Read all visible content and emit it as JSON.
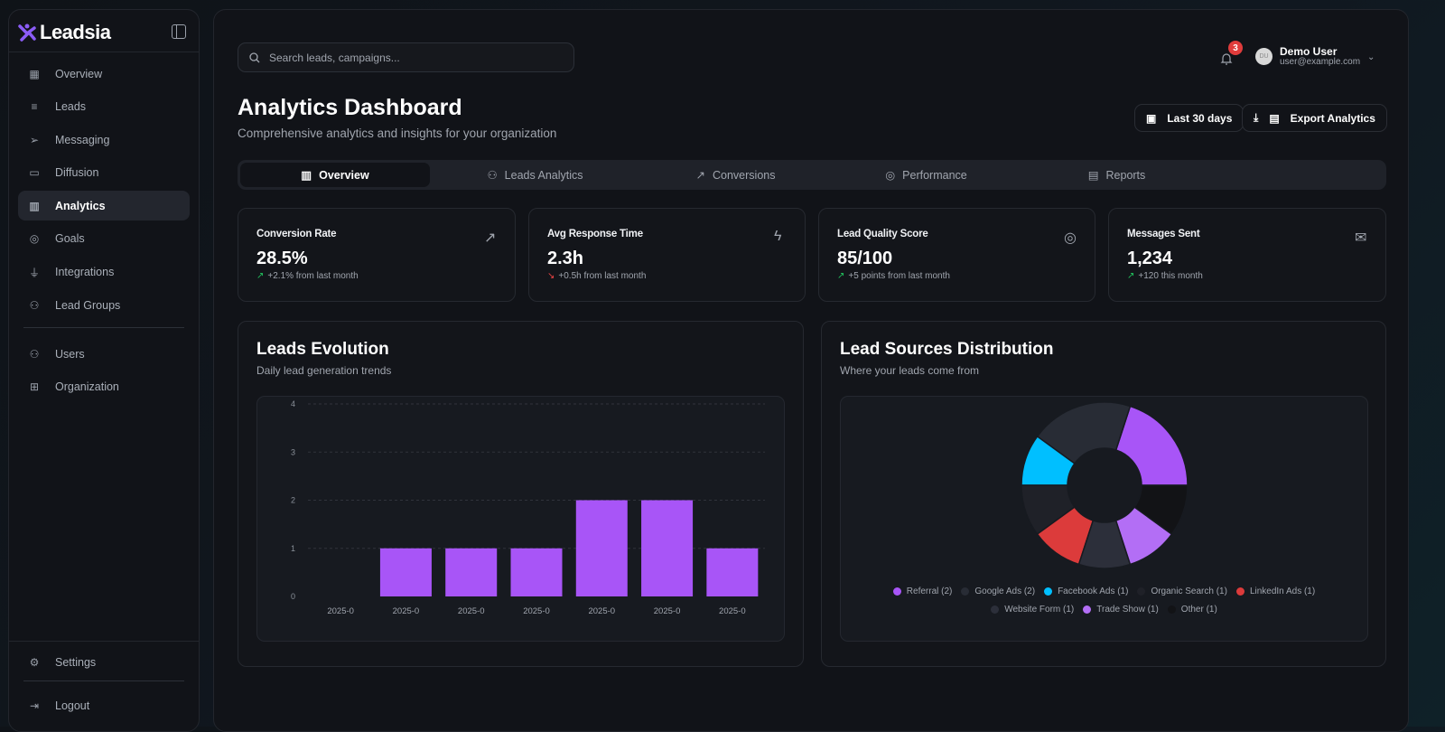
{
  "sidebar": {
    "brand": "Leadsia",
    "items": [
      {
        "label": "Overview",
        "icon": "grid-icon"
      },
      {
        "label": "Leads",
        "icon": "filter-icon"
      },
      {
        "label": "Messaging",
        "icon": "send-icon"
      },
      {
        "label": "Diffusion",
        "icon": "broadcast-icon"
      },
      {
        "label": "Analytics",
        "icon": "bar-chart-icon",
        "active": true
      },
      {
        "label": "Goals",
        "icon": "target-icon"
      },
      {
        "label": "Integrations",
        "icon": "plug-icon"
      },
      {
        "label": "Lead Groups",
        "icon": "users-icon"
      }
    ],
    "items2": [
      {
        "label": "Users",
        "icon": "users-icon"
      },
      {
        "label": "Organization",
        "icon": "briefcase-icon"
      }
    ],
    "settings": "Settings",
    "logout": "Logout"
  },
  "header": {
    "search_placeholder": "Search leads, campaigns...",
    "notifications": "3",
    "user_initials": "DU",
    "user_name": "Demo User",
    "user_email": "user@example.com"
  },
  "page": {
    "title": "Analytics Dashboard",
    "subtitle": "Comprehensive analytics and insights for your organization",
    "date_range": "Last 30 days",
    "export": "Export Analytics"
  },
  "tabs": [
    {
      "label": "Overview",
      "active": true
    },
    {
      "label": "Leads Analytics"
    },
    {
      "label": "Conversions"
    },
    {
      "label": "Performance"
    },
    {
      "label": "Reports"
    }
  ],
  "kpis": [
    {
      "title": "Conversion Rate",
      "value": "28.5%",
      "delta": "+2.1% from last month",
      "trend": "up",
      "icon": "trending-up-icon"
    },
    {
      "title": "Avg Response Time",
      "value": "2.3h",
      "delta": "+0.5h from last month",
      "trend": "down",
      "icon": "zap-icon"
    },
    {
      "title": "Lead Quality Score",
      "value": "85/100",
      "delta": "+5 points from last month",
      "trend": "up",
      "icon": "target-icon"
    },
    {
      "title": "Messages Sent",
      "value": "1,234",
      "delta": "+120 this month",
      "trend": "up",
      "icon": "mail-icon"
    }
  ],
  "leads_panel": {
    "title": "Leads Evolution",
    "subtitle": "Daily lead generation trends"
  },
  "sources_panel": {
    "title": "Lead Sources Distribution",
    "subtitle": "Where your leads come from"
  },
  "chart_data": [
    {
      "type": "bar",
      "categories": [
        "2025-0",
        "2025-0",
        "2025-0",
        "2025-0",
        "2025-0",
        "2025-0",
        "2025-0"
      ],
      "values": [
        0,
        1,
        1,
        1,
        2,
        2,
        1
      ],
      "yticks": [
        "0",
        "1",
        "2",
        "3",
        "4"
      ],
      "ylim": [
        0,
        4
      ],
      "grid": true,
      "color": "#a855f7"
    },
    {
      "type": "pie",
      "donut": true,
      "legend_position": "bottom",
      "slices": [
        {
          "name": "Referral",
          "value": 2,
          "label": "Referral (2)",
          "color": "#a855f7"
        },
        {
          "name": "Google Ads",
          "value": 2,
          "label": "Google Ads (2)",
          "color": "#282c35"
        },
        {
          "name": "Facebook Ads",
          "value": 1,
          "label": "Facebook Ads (1)",
          "color": "#00bfff"
        },
        {
          "name": "Organic Search",
          "value": 1,
          "label": "Organic Search (1)",
          "color": "#1f2128"
        },
        {
          "name": "LinkedIn Ads",
          "value": 1,
          "label": "LinkedIn Ads (1)",
          "color": "#dc3b3b"
        },
        {
          "name": "Website Form",
          "value": 1,
          "label": "Website Form (1)",
          "color": "#2c2f3a"
        },
        {
          "name": "Trade Show",
          "value": 1,
          "label": "Trade Show (1)",
          "color": "#b36ef5"
        },
        {
          "name": "Other",
          "value": 1,
          "label": "Other (1)",
          "color": "#121316"
        }
      ]
    }
  ]
}
